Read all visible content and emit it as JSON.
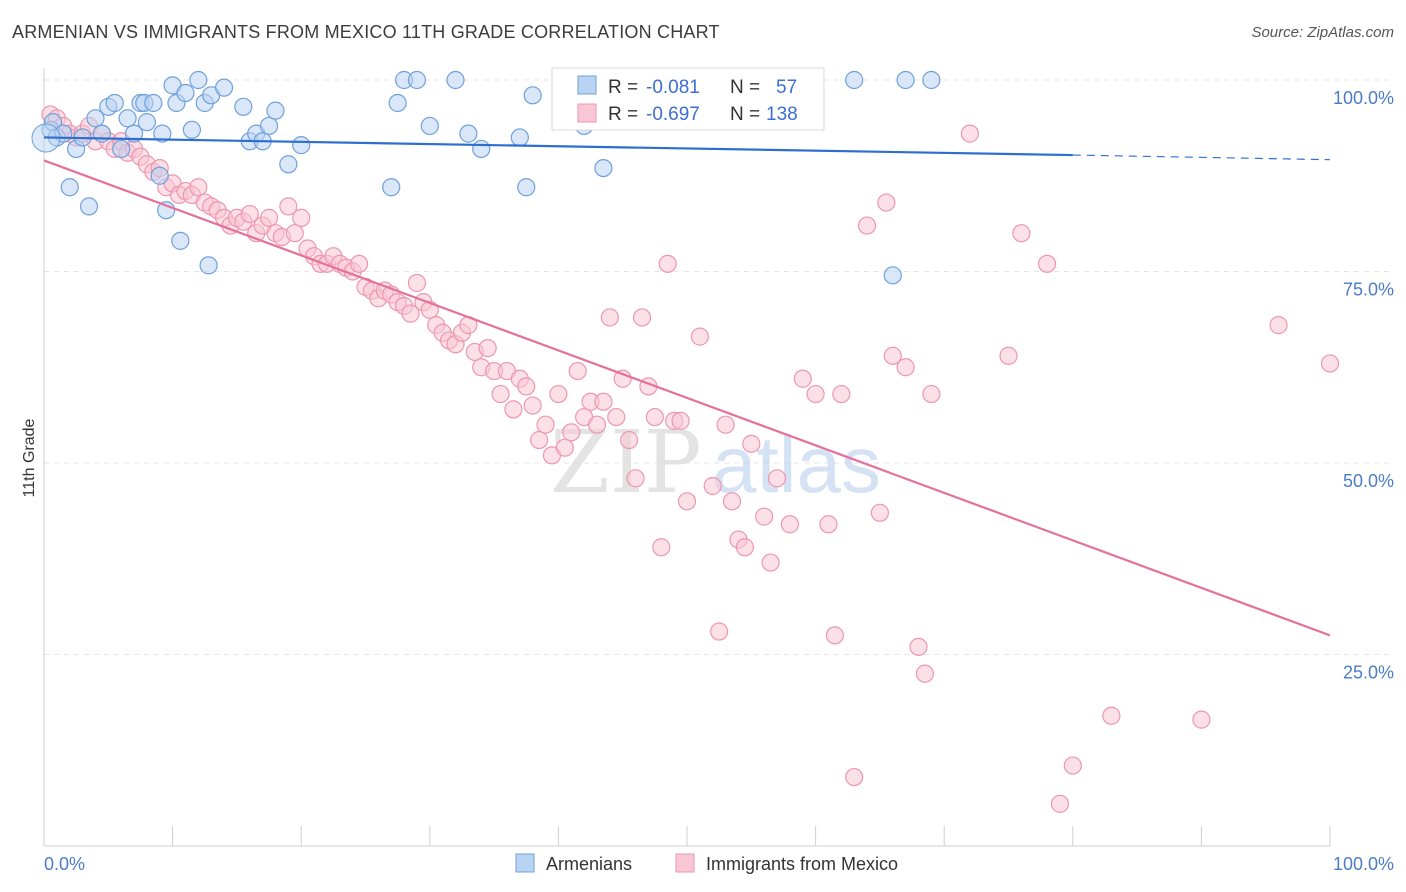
{
  "title": "ARMENIAN VS IMMIGRANTS FROM MEXICO 11TH GRADE CORRELATION CHART",
  "source": "Source: ZipAtlas.com",
  "watermark": {
    "zip": "ZIP",
    "atlas": "atlas"
  },
  "chart_data": {
    "type": "scatter",
    "ylabel": "11th Grade",
    "xlim": [
      0,
      100
    ],
    "ylim": [
      0,
      100
    ],
    "x_tick_labels": [
      "0.0%",
      "100.0%"
    ],
    "y_tick_labels": [
      {
        "value": 100,
        "label": "100.0%"
      },
      {
        "value": 75,
        "label": "75.0%"
      },
      {
        "value": 50,
        "label": "50.0%"
      },
      {
        "value": 25,
        "label": "25.0%"
      }
    ],
    "stats": [
      {
        "r_label": "R =",
        "r": "-0.081",
        "n_label": "N =",
        "n": "57"
      },
      {
        "r_label": "R =",
        "r": "-0.697",
        "n_label": "N =",
        "n": "138"
      }
    ],
    "series": [
      {
        "name": "Armenians",
        "color": "#6fa0dc",
        "fill": "#b9d3f2",
        "line_color": "#2c6fd1",
        "trend": {
          "x0": 0,
          "y0": 92.5,
          "x1": 80,
          "y1": 90.2,
          "dash_to": 100,
          "dash_y": 89.6
        },
        "points": [
          [
            0.5,
            93.5
          ],
          [
            0.7,
            94.5
          ],
          [
            1,
            92.5
          ],
          [
            1.5,
            93
          ],
          [
            2,
            86
          ],
          [
            2.5,
            91
          ],
          [
            3,
            92.5
          ],
          [
            3.5,
            83.5
          ],
          [
            4,
            95
          ],
          [
            4.5,
            93
          ],
          [
            5,
            96.5
          ],
          [
            5.5,
            97
          ],
          [
            6,
            91
          ],
          [
            6.5,
            95
          ],
          [
            7,
            93
          ],
          [
            7.5,
            97
          ],
          [
            7.8,
            97
          ],
          [
            8,
            94.5
          ],
          [
            8.5,
            97
          ],
          [
            9,
            87.5
          ],
          [
            9.2,
            93
          ],
          [
            9.5,
            83
          ],
          [
            10,
            99.3
          ],
          [
            10.3,
            97
          ],
          [
            10.6,
            79
          ],
          [
            11,
            98.3
          ],
          [
            11.5,
            93.5
          ],
          [
            12,
            100
          ],
          [
            12.5,
            97
          ],
          [
            12.8,
            75.8
          ],
          [
            13,
            98
          ],
          [
            14,
            99
          ],
          [
            15.5,
            96.5
          ],
          [
            16,
            92
          ],
          [
            16.5,
            93
          ],
          [
            17,
            92
          ],
          [
            17.5,
            94
          ],
          [
            18,
            96
          ],
          [
            19,
            89
          ],
          [
            20,
            91.5
          ],
          [
            27,
            86
          ],
          [
            27.5,
            97
          ],
          [
            28,
            100
          ],
          [
            29,
            100
          ],
          [
            30,
            94
          ],
          [
            32,
            100
          ],
          [
            33,
            93
          ],
          [
            34,
            91
          ],
          [
            37,
            92.5
          ],
          [
            37.5,
            86
          ],
          [
            38,
            98
          ],
          [
            42,
            94
          ],
          [
            43.5,
            88.5
          ],
          [
            66,
            74.5
          ],
          [
            67,
            100
          ],
          [
            63,
            100
          ],
          [
            69,
            100
          ]
        ]
      },
      {
        "name": "Immigrants from Mexico",
        "color": "#ee96b0",
        "fill": "#f8c6d4",
        "line_color": "#e5709a",
        "trend": {
          "x0": 0,
          "y0": 89.5,
          "x1": 100,
          "y1": 27.5
        },
        "points": [
          [
            0.5,
            95.5
          ],
          [
            1,
            95
          ],
          [
            1.5,
            94
          ],
          [
            2,
            93
          ],
          [
            2.5,
            92.5
          ],
          [
            3,
            93
          ],
          [
            3.5,
            94
          ],
          [
            4,
            92
          ],
          [
            4.5,
            93
          ],
          [
            5,
            92
          ],
          [
            5.5,
            91
          ],
          [
            6,
            92
          ],
          [
            6.5,
            90.5
          ],
          [
            7,
            91
          ],
          [
            7.5,
            90
          ],
          [
            8,
            89
          ],
          [
            8.5,
            88
          ],
          [
            9,
            88.5
          ],
          [
            9.5,
            86
          ],
          [
            10,
            86.5
          ],
          [
            10.5,
            85
          ],
          [
            11,
            85.5
          ],
          [
            11.5,
            85
          ],
          [
            12,
            86
          ],
          [
            12.5,
            84
          ],
          [
            13,
            83.5
          ],
          [
            13.5,
            83
          ],
          [
            14,
            82
          ],
          [
            14.5,
            81
          ],
          [
            15,
            82
          ],
          [
            15.5,
            81.5
          ],
          [
            16,
            82.5
          ],
          [
            16.5,
            80
          ],
          [
            17,
            81
          ],
          [
            17.5,
            82
          ],
          [
            18,
            80
          ],
          [
            18.5,
            79.5
          ],
          [
            19,
            83.5
          ],
          [
            19.5,
            80
          ],
          [
            20,
            82
          ],
          [
            20.5,
            78
          ],
          [
            21,
            77
          ],
          [
            21.5,
            76
          ],
          [
            22,
            76
          ],
          [
            22.5,
            77
          ],
          [
            23,
            76
          ],
          [
            23.5,
            75.5
          ],
          [
            24,
            75
          ],
          [
            24.5,
            76
          ],
          [
            25,
            73
          ],
          [
            25.5,
            72.5
          ],
          [
            26,
            71.5
          ],
          [
            26.5,
            72.5
          ],
          [
            27,
            72
          ],
          [
            27.5,
            71
          ],
          [
            28,
            70.5
          ],
          [
            28.5,
            69.5
          ],
          [
            29,
            73.5
          ],
          [
            29.5,
            71
          ],
          [
            30,
            70
          ],
          [
            30.5,
            68
          ],
          [
            31,
            67
          ],
          [
            31.5,
            66
          ],
          [
            32,
            65.5
          ],
          [
            32.5,
            67
          ],
          [
            33,
            68
          ],
          [
            33.5,
            64.5
          ],
          [
            34,
            62.5
          ],
          [
            34.5,
            65
          ],
          [
            35,
            62
          ],
          [
            35.5,
            59
          ],
          [
            36,
            62
          ],
          [
            36.5,
            57
          ],
          [
            37,
            61
          ],
          [
            37.5,
            60
          ],
          [
            38,
            57.5
          ],
          [
            38.5,
            53
          ],
          [
            39,
            55
          ],
          [
            39.5,
            51
          ],
          [
            40,
            59
          ],
          [
            40.5,
            52
          ],
          [
            41,
            54
          ],
          [
            41.5,
            62
          ],
          [
            42,
            56
          ],
          [
            42.5,
            58
          ],
          [
            43,
            55
          ],
          [
            43.5,
            58
          ],
          [
            44,
            69
          ],
          [
            44.5,
            56
          ],
          [
            45,
            61
          ],
          [
            45.5,
            53
          ],
          [
            46,
            48
          ],
          [
            46.5,
            69
          ],
          [
            47,
            60
          ],
          [
            47.5,
            56
          ],
          [
            48,
            39
          ],
          [
            48.5,
            76
          ],
          [
            49,
            55.5
          ],
          [
            49.5,
            55.5
          ],
          [
            50,
            45
          ],
          [
            51,
            66.5
          ],
          [
            52,
            47
          ],
          [
            52.5,
            28
          ],
          [
            53,
            55
          ],
          [
            53.5,
            45
          ],
          [
            54,
            40
          ],
          [
            54.5,
            39
          ],
          [
            55,
            52.5
          ],
          [
            56,
            43
          ],
          [
            56.5,
            37
          ],
          [
            57,
            48
          ],
          [
            58,
            42
          ],
          [
            59,
            61
          ],
          [
            60,
            59
          ],
          [
            61,
            42
          ],
          [
            61.5,
            27.5
          ],
          [
            62,
            59
          ],
          [
            63,
            9
          ],
          [
            64,
            81
          ],
          [
            65,
            43.5
          ],
          [
            65.5,
            84
          ],
          [
            66,
            64
          ],
          [
            67,
            62.5
          ],
          [
            68,
            26
          ],
          [
            68.5,
            22.5
          ],
          [
            69,
            59
          ],
          [
            72,
            93
          ],
          [
            75,
            64
          ],
          [
            76,
            80
          ],
          [
            78,
            76
          ],
          [
            79,
            5.5
          ],
          [
            80,
            10.5
          ],
          [
            83,
            17
          ],
          [
            90,
            16.5
          ],
          [
            96,
            68
          ],
          [
            100,
            63
          ]
        ]
      }
    ],
    "legend": [
      "Armenians",
      "Immigrants from Mexico"
    ]
  }
}
